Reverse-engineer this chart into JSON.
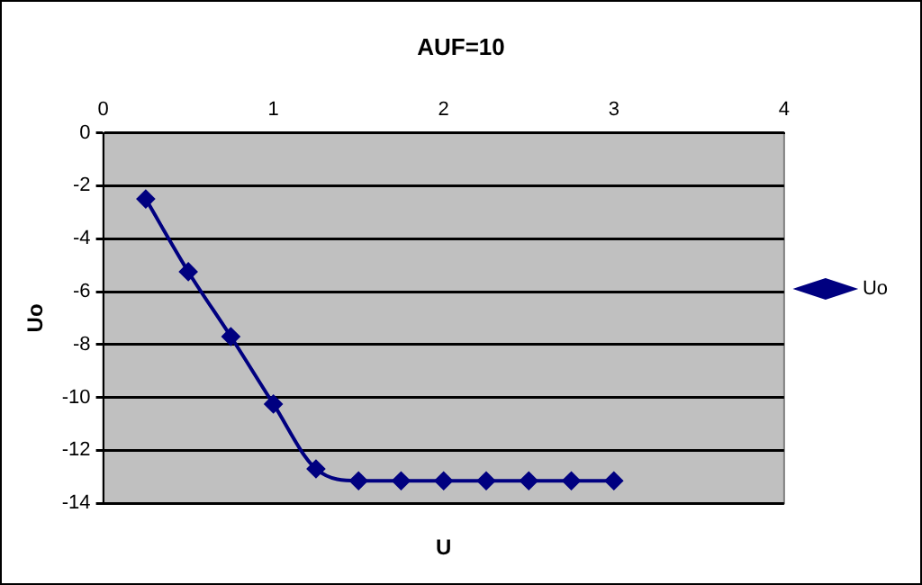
{
  "chart_data": {
    "type": "line",
    "title": "AUF=10",
    "xlabel": "U",
    "ylabel": "Uo",
    "x": [
      0.25,
      0.5,
      0.75,
      1,
      1.25,
      1.5,
      1.75,
      2,
      2.25,
      2.5,
      2.75,
      3
    ],
    "series": [
      {
        "name": "Uo",
        "color": "#000080",
        "values": [
          -2.5,
          -5.25,
          -7.7,
          -10.25,
          -12.7,
          -13.15,
          -13.15,
          -13.15,
          -13.15,
          -13.15,
          -13.15,
          -13.15
        ]
      }
    ],
    "xlim": [
      0,
      4
    ],
    "xticks": [
      0,
      1,
      2,
      3,
      4
    ],
    "ylim": [
      -14,
      0
    ],
    "yticks": [
      -14,
      -12,
      -10,
      -8,
      -6,
      -4,
      -2,
      0
    ],
    "grid": "y",
    "legend": "right",
    "marker": "diamond",
    "line_style": "solid"
  }
}
